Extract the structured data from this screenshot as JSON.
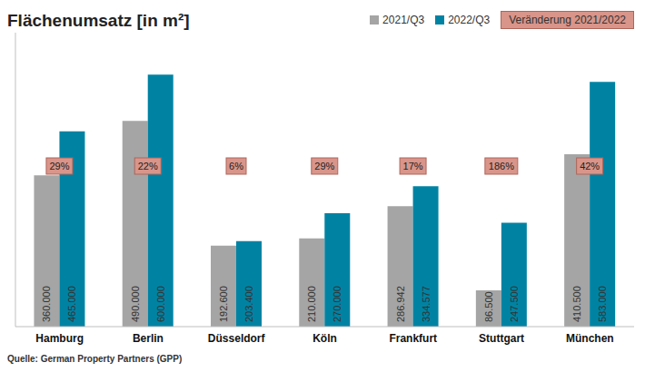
{
  "chart_data": {
    "type": "bar",
    "title": "Flächenumsatz [in m²]",
    "categories": [
      "Hamburg",
      "Berlin",
      "Düsseldorf",
      "Köln",
      "Frankfurt",
      "Stuttgart",
      "München"
    ],
    "series": [
      {
        "name": "2021/Q3",
        "color": "#a5a5a5",
        "values": [
          360000,
          490000,
          192600,
          210000,
          286942,
          86500,
          410500
        ],
        "value_labels": [
          "360.000",
          "490.000",
          "192.600",
          "210.000",
          "286.942",
          "86.500",
          "410.500"
        ]
      },
      {
        "name": "2022/Q3",
        "color": "#0083a3",
        "values": [
          465000,
          600000,
          203400,
          270000,
          334577,
          247500,
          583000
        ],
        "value_labels": [
          "465.000",
          "600.000",
          "203.400",
          "270.000",
          "334.577",
          "247.500",
          "583.000"
        ]
      }
    ],
    "change": {
      "name": "Veränderung 2021/2022",
      "color": "#d9958a",
      "values": [
        29,
        22,
        6,
        29,
        17,
        186,
        42
      ],
      "value_labels": [
        "29%",
        "22%",
        "6%",
        "29%",
        "17%",
        "186%",
        "42%"
      ]
    },
    "ylim": [
      0,
      700000
    ],
    "tick_labels": "x",
    "data_labels": true,
    "grid": false,
    "legend": "top right",
    "source": "Quelle: German Property Partners (GPP)"
  }
}
